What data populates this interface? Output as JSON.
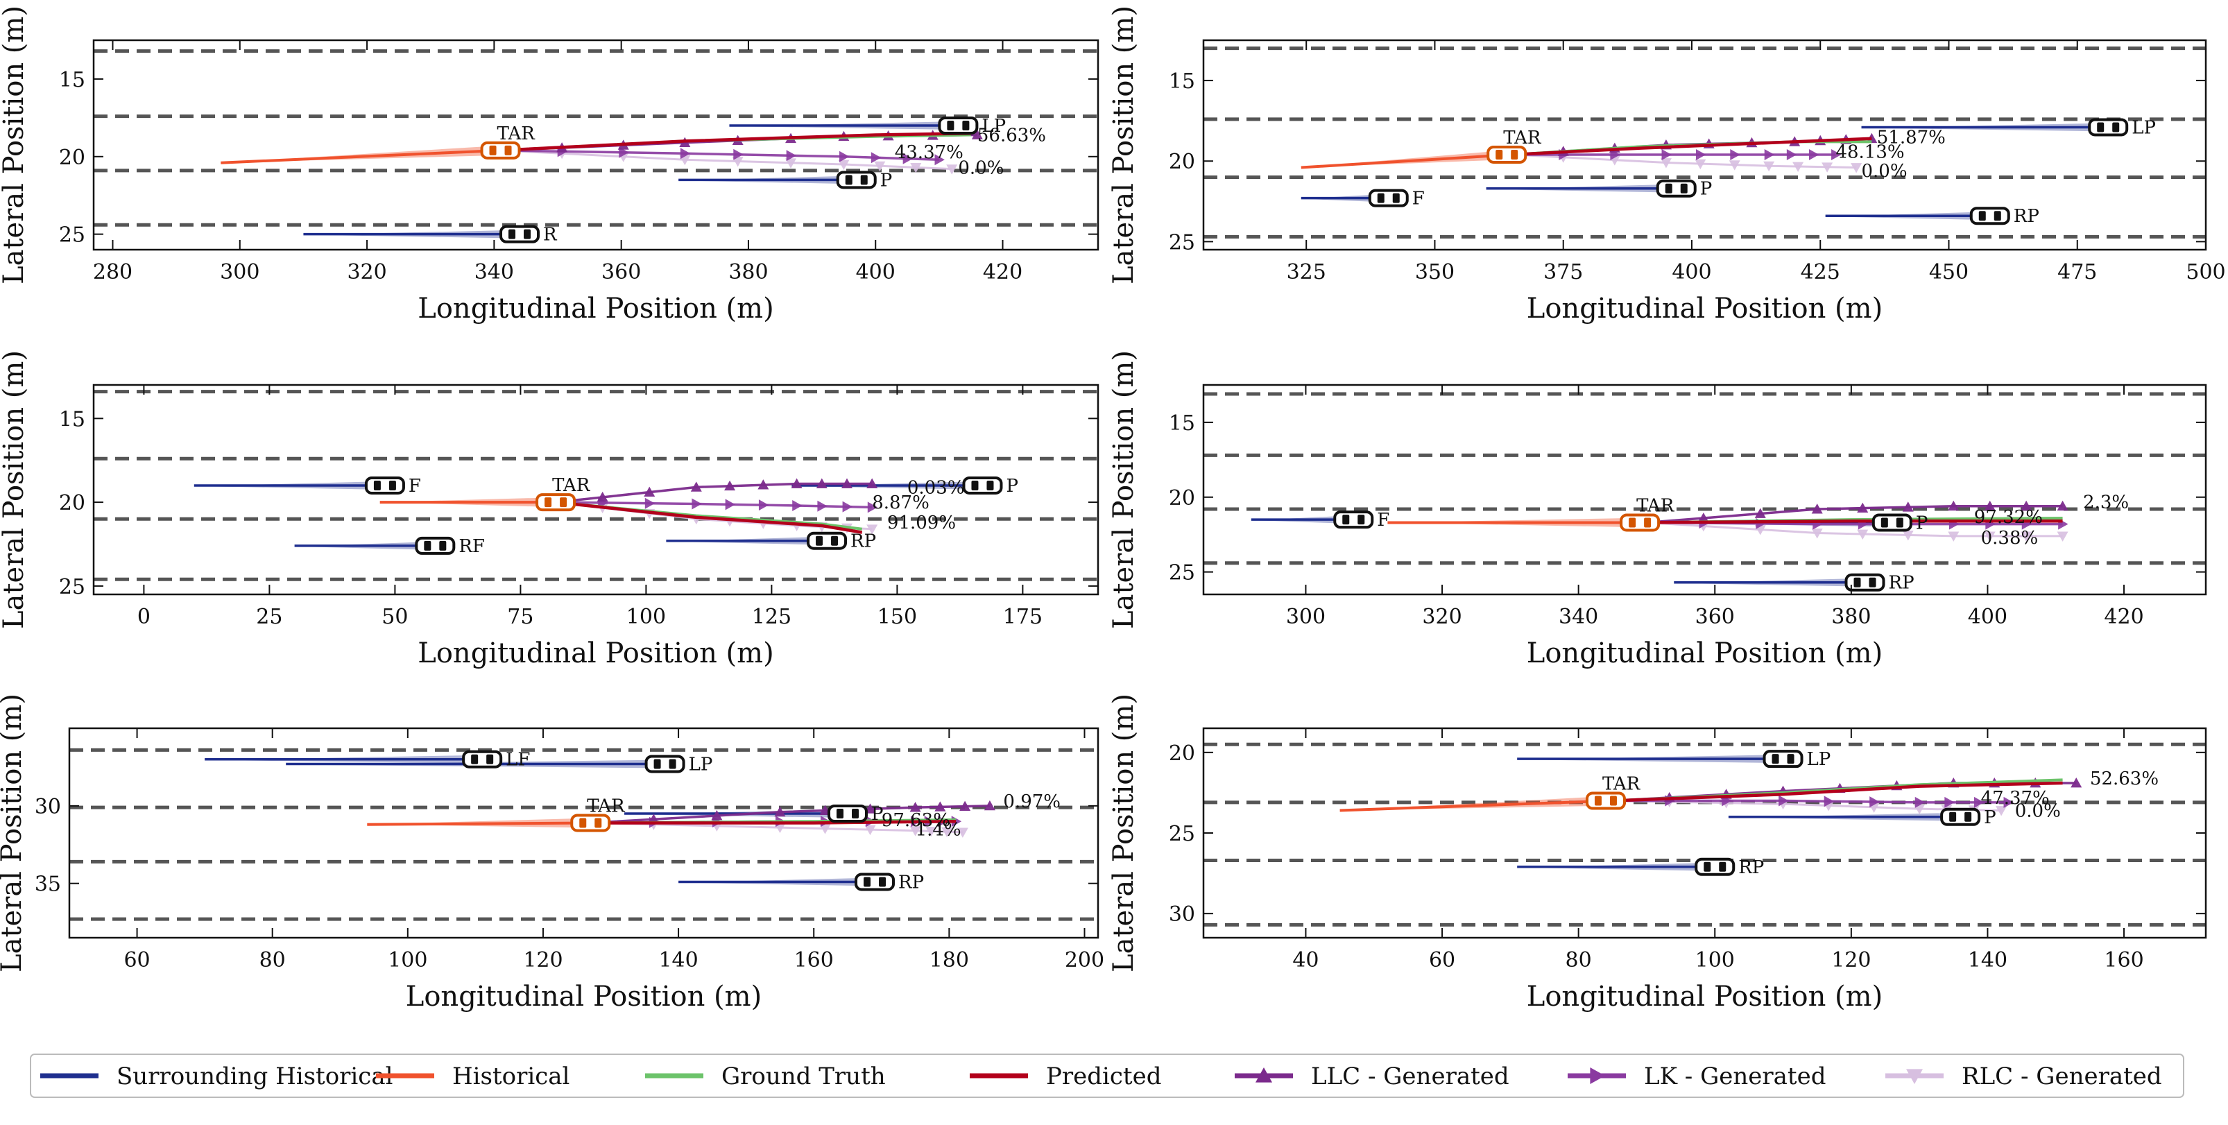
{
  "colors": {
    "surrounding": "#1f2f8f",
    "historical": "#f0522d",
    "ground_truth": "#6cc36a",
    "predicted": "#b3001b",
    "llc": "#7b2a8c",
    "lk": "#8a3aa0",
    "rlc": "#d7bfe0",
    "lane": "#555555",
    "target_car": "#d45500",
    "car": "#111111"
  },
  "legend": {
    "items": [
      {
        "label": "Surrounding Historical",
        "key": "surrounding",
        "marker": "none"
      },
      {
        "label": "Historical",
        "key": "historical",
        "marker": "none"
      },
      {
        "label": "Ground Truth",
        "key": "ground_truth",
        "marker": "none"
      },
      {
        "label": "Predicted",
        "key": "predicted",
        "marker": "none"
      },
      {
        "label": "LLC - Generated",
        "key": "llc",
        "marker": "triangle-up"
      },
      {
        "label": "LK - Generated",
        "key": "lk",
        "marker": "triangle-right"
      },
      {
        "label": "RLC - Generated",
        "key": "rlc",
        "marker": "triangle-down"
      }
    ]
  },
  "chart_data": [
    {
      "type": "line",
      "xlabel": "Longitudinal Position (m)",
      "ylabel": "Lateral Position (m)",
      "xlim": [
        277,
        435
      ],
      "ylim": [
        26,
        12.5
      ],
      "xticks": [
        280,
        300,
        320,
        340,
        360,
        380,
        400,
        420
      ],
      "yticks": [
        15,
        20,
        25
      ],
      "lanes": [
        13.2,
        17.4,
        20.9,
        24.4
      ],
      "historical": [
        [
          297,
          20.4
        ],
        [
          341,
          19.6
        ]
      ],
      "ground_truth": [
        [
          341,
          19.6
        ],
        [
          370,
          19.0
        ],
        [
          400,
          18.7
        ],
        [
          415,
          18.6
        ]
      ],
      "predicted": [
        [
          341,
          19.6
        ],
        [
          370,
          19.0
        ],
        [
          400,
          18.6
        ],
        [
          415,
          18.5
        ]
      ],
      "llc": [
        [
          341,
          19.6
        ],
        [
          370,
          19.1
        ],
        [
          395,
          18.7
        ],
        [
          416,
          18.6
        ]
      ],
      "lk": [
        [
          341,
          19.6
        ],
        [
          370,
          19.8
        ],
        [
          395,
          20.0
        ],
        [
          410,
          20.2
        ]
      ],
      "rlc": [
        [
          341,
          19.6
        ],
        [
          370,
          20.2
        ],
        [
          395,
          20.5
        ],
        [
          412,
          20.8
        ]
      ],
      "percentages": [
        {
          "text": "56.63%",
          "x": 416,
          "y": 18.6
        },
        {
          "text": "43.37%",
          "x": 403,
          "y": 19.7
        },
        {
          "text": "0.0%",
          "x": 413,
          "y": 20.7
        }
      ],
      "vehicles": [
        {
          "label": "TAR",
          "x": 341,
          "y": 19.6,
          "target": true,
          "hist_start": 297
        },
        {
          "label": "LP",
          "x": 413,
          "y": 18.0,
          "hist_start": 377
        },
        {
          "label": "P",
          "x": 397,
          "y": 21.5,
          "hist_start": 369
        },
        {
          "label": "R",
          "x": 344,
          "y": 25.0,
          "hist_start": 310
        }
      ]
    },
    {
      "type": "line",
      "xlabel": "Longitudinal Position (m)",
      "ylabel": "Lateral Position (m)",
      "xlim": [
        305,
        500
      ],
      "ylim": [
        25.5,
        12.5
      ],
      "xticks": [
        325,
        350,
        375,
        400,
        425,
        450,
        475,
        500
      ],
      "yticks": [
        15,
        20,
        25
      ],
      "lanes": [
        13.0,
        17.4,
        21.0,
        24.7
      ],
      "historical": [
        [
          324,
          20.4
        ],
        [
          365,
          19.6
        ]
      ],
      "ground_truth": [
        [
          365,
          19.6
        ],
        [
          390,
          19.1
        ],
        [
          420,
          18.8
        ],
        [
          435,
          18.8
        ]
      ],
      "predicted": [
        [
          365,
          19.6
        ],
        [
          390,
          19.2
        ],
        [
          420,
          18.8
        ],
        [
          435,
          18.6
        ]
      ],
      "llc": [
        [
          365,
          19.6
        ],
        [
          395,
          19.0
        ],
        [
          420,
          18.8
        ],
        [
          435,
          18.6
        ]
      ],
      "lk": [
        [
          365,
          19.6
        ],
        [
          395,
          19.6
        ],
        [
          415,
          19.6
        ],
        [
          428,
          19.6
        ]
      ],
      "rlc": [
        [
          365,
          19.6
        ],
        [
          395,
          20.1
        ],
        [
          415,
          20.3
        ],
        [
          432,
          20.4
        ]
      ],
      "percentages": [
        {
          "text": "51.87%",
          "x": 436,
          "y": 18.5
        },
        {
          "text": "48.13%",
          "x": 428,
          "y": 19.4
        },
        {
          "text": "0.0%",
          "x": 433,
          "y": 20.6
        }
      ],
      "vehicles": [
        {
          "label": "TAR",
          "x": 364,
          "y": 19.6,
          "target": true,
          "hist_start": 324
        },
        {
          "label": "LP",
          "x": 481,
          "y": 17.9,
          "hist_start": 433
        },
        {
          "label": "P",
          "x": 397,
          "y": 21.7,
          "hist_start": 360
        },
        {
          "label": "F",
          "x": 341,
          "y": 22.3,
          "hist_start": 324
        },
        {
          "label": "RP",
          "x": 458,
          "y": 23.4,
          "hist_start": 426
        }
      ]
    },
    {
      "type": "line",
      "xlabel": "Longitudinal Position (m)",
      "ylabel": "Lateral Position (m)",
      "xlim": [
        -10,
        190
      ],
      "ylim": [
        25.5,
        13
      ],
      "xticks": [
        0,
        25,
        50,
        75,
        100,
        125,
        150,
        175
      ],
      "yticks": [
        15,
        20,
        25
      ],
      "lanes": [
        13.4,
        17.4,
        21.0,
        24.6
      ],
      "historical": [
        [
          47,
          20.0
        ],
        [
          82,
          20.0
        ]
      ],
      "ground_truth": [
        [
          82,
          20.0
        ],
        [
          110,
          20.8
        ],
        [
          135,
          21.3
        ],
        [
          143,
          21.6
        ]
      ],
      "predicted": [
        [
          82,
          20.0
        ],
        [
          110,
          20.9
        ],
        [
          135,
          21.4
        ],
        [
          143,
          21.8
        ]
      ],
      "llc": [
        [
          82,
          20.0
        ],
        [
          110,
          19.1
        ],
        [
          130,
          18.9
        ],
        [
          145,
          18.9
        ]
      ],
      "lk": [
        [
          82,
          20.0
        ],
        [
          110,
          20.1
        ],
        [
          130,
          20.2
        ],
        [
          145,
          20.3
        ]
      ],
      "rlc": [
        [
          82,
          20.0
        ],
        [
          110,
          21.0
        ],
        [
          130,
          21.4
        ],
        [
          145,
          21.6
        ]
      ],
      "percentages": [
        {
          "text": "0.03%",
          "x": 152,
          "y": 19.1
        },
        {
          "text": "8.87%",
          "x": 145,
          "y": 20.0
        },
        {
          "text": "91.09%",
          "x": 148,
          "y": 21.2
        }
      ],
      "vehicles": [
        {
          "label": "TAR",
          "x": 82,
          "y": 20.0,
          "target": true,
          "hist_start": 47
        },
        {
          "label": "P",
          "x": 167,
          "y": 19.0,
          "hist_start": 129
        },
        {
          "label": "F",
          "x": 48,
          "y": 19.0,
          "hist_start": 10
        },
        {
          "label": "RF",
          "x": 58,
          "y": 22.6,
          "hist_start": 30
        },
        {
          "label": "RP",
          "x": 136,
          "y": 22.3,
          "hist_start": 104
        }
      ]
    },
    {
      "type": "line",
      "xlabel": "Longitudinal Position (m)",
      "ylabel": "Lateral Position (m)",
      "xlim": [
        285,
        432
      ],
      "ylim": [
        26.5,
        12.5
      ],
      "xticks": [
        300,
        320,
        340,
        360,
        380,
        400,
        420
      ],
      "yticks": [
        15,
        20,
        25
      ],
      "lanes": [
        13.1,
        17.2,
        20.8,
        24.4
      ],
      "historical": [
        [
          312,
          21.7
        ],
        [
          350,
          21.7
        ]
      ],
      "ground_truth": [
        [
          350,
          21.7
        ],
        [
          380,
          21.5
        ],
        [
          411,
          21.4
        ]
      ],
      "predicted": [
        [
          350,
          21.7
        ],
        [
          380,
          21.6
        ],
        [
          411,
          21.6
        ]
      ],
      "llc": [
        [
          350,
          21.7
        ],
        [
          375,
          20.8
        ],
        [
          395,
          20.6
        ],
        [
          411,
          20.6
        ]
      ],
      "lk": [
        [
          350,
          21.7
        ],
        [
          375,
          21.8
        ],
        [
          395,
          21.8
        ],
        [
          411,
          21.8
        ]
      ],
      "rlc": [
        [
          350,
          21.7
        ],
        [
          375,
          22.4
        ],
        [
          395,
          22.6
        ],
        [
          411,
          22.6
        ]
      ],
      "percentages": [
        {
          "text": "2.3%",
          "x": 414,
          "y": 20.3
        },
        {
          "text": "97.32%",
          "x": 398,
          "y": 21.3
        },
        {
          "text": "0.38%",
          "x": 399,
          "y": 22.7
        }
      ],
      "vehicles": [
        {
          "label": "TAR",
          "x": 349,
          "y": 21.7,
          "target": true,
          "hist_start": 312
        },
        {
          "label": "P",
          "x": 386,
          "y": 21.7,
          "hist_start": 352
        },
        {
          "label": "F",
          "x": 307,
          "y": 21.5,
          "hist_start": 292
        },
        {
          "label": "RP",
          "x": 382,
          "y": 25.7,
          "hist_start": 354
        }
      ]
    },
    {
      "type": "line",
      "xlabel": "Longitudinal Position (m)",
      "ylabel": "Lateral Position (m)",
      "xlim": [
        50,
        202
      ],
      "ylim": [
        38.5,
        25
      ],
      "xticks": [
        60,
        80,
        100,
        120,
        140,
        160,
        180,
        200
      ],
      "yticks": [
        30,
        35
      ],
      "lanes": [
        26.4,
        30.1,
        33.6,
        37.3
      ],
      "historical": [
        [
          94,
          31.2
        ],
        [
          127,
          31.1
        ]
      ],
      "ground_truth": [
        [
          127,
          31.1
        ],
        [
          160,
          31.0
        ],
        [
          181,
          30.9
        ]
      ],
      "predicted": [
        [
          127,
          31.1
        ],
        [
          160,
          31.1
        ],
        [
          181,
          31.0
        ]
      ],
      "llc": [
        [
          127,
          31.1
        ],
        [
          155,
          30.4
        ],
        [
          175,
          30.1
        ],
        [
          186,
          30.0
        ]
      ],
      "lk": [
        [
          127,
          31.1
        ],
        [
          155,
          31.0
        ],
        [
          175,
          31.0
        ],
        [
          181,
          31.0
        ]
      ],
      "rlc": [
        [
          127,
          31.1
        ],
        [
          155,
          31.4
        ],
        [
          175,
          31.6
        ],
        [
          182,
          31.7
        ]
      ],
      "percentages": [
        {
          "text": "0.97%",
          "x": 188,
          "y": 29.7
        },
        {
          "text": "97.63%",
          "x": 170,
          "y": 30.9
        },
        {
          "text": "1.4%",
          "x": 175,
          "y": 31.5
        }
      ],
      "vehicles": [
        {
          "label": "TAR",
          "x": 127,
          "y": 31.1,
          "target": true,
          "hist_start": 94
        },
        {
          "label": "LF",
          "x": 111,
          "y": 27.0,
          "hist_start": 70
        },
        {
          "label": "LP",
          "x": 138,
          "y": 27.3,
          "hist_start": 82
        },
        {
          "label": "P",
          "x": 165,
          "y": 30.5,
          "hist_start": 132
        },
        {
          "label": "RP",
          "x": 169,
          "y": 34.9,
          "hist_start": 140
        }
      ]
    },
    {
      "type": "line",
      "xlabel": "Longitudinal Position (m)",
      "ylabel": "Lateral Position (m)",
      "xlim": [
        25,
        172
      ],
      "ylim": [
        31.5,
        18.5
      ],
      "xticks": [
        40,
        60,
        80,
        100,
        120,
        140,
        160
      ],
      "yticks": [
        20,
        25,
        30
      ],
      "lanes": [
        19.5,
        23.1,
        26.7,
        30.7
      ],
      "historical": [
        [
          45,
          23.6
        ],
        [
          85,
          23.0
        ]
      ],
      "ground_truth": [
        [
          85,
          23.0
        ],
        [
          110,
          22.5
        ],
        [
          130,
          22.0
        ],
        [
          151,
          21.7
        ]
      ],
      "predicted": [
        [
          85,
          23.0
        ],
        [
          110,
          22.6
        ],
        [
          130,
          22.1
        ],
        [
          151,
          21.9
        ]
      ],
      "llc": [
        [
          85,
          23.0
        ],
        [
          110,
          22.4
        ],
        [
          135,
          21.9
        ],
        [
          153,
          21.9
        ]
      ],
      "lk": [
        [
          85,
          23.0
        ],
        [
          110,
          23.0
        ],
        [
          130,
          23.1
        ],
        [
          143,
          23.1
        ]
      ],
      "rlc": [
        [
          85,
          23.0
        ],
        [
          110,
          23.2
        ],
        [
          130,
          23.5
        ],
        [
          142,
          23.6
        ]
      ],
      "percentages": [
        {
          "text": "52.63%",
          "x": 155,
          "y": 21.6
        },
        {
          "text": "47.37%",
          "x": 139,
          "y": 22.8
        },
        {
          "text": "0.0%",
          "x": 144,
          "y": 23.6
        }
      ],
      "vehicles": [
        {
          "label": "TAR",
          "x": 84,
          "y": 23.0,
          "target": true,
          "hist_start": 45
        },
        {
          "label": "LP",
          "x": 110,
          "y": 20.4,
          "hist_start": 71
        },
        {
          "label": "P",
          "x": 136,
          "y": 24.0,
          "hist_start": 102
        },
        {
          "label": "RP",
          "x": 100,
          "y": 27.1,
          "hist_start": 71
        }
      ]
    }
  ]
}
